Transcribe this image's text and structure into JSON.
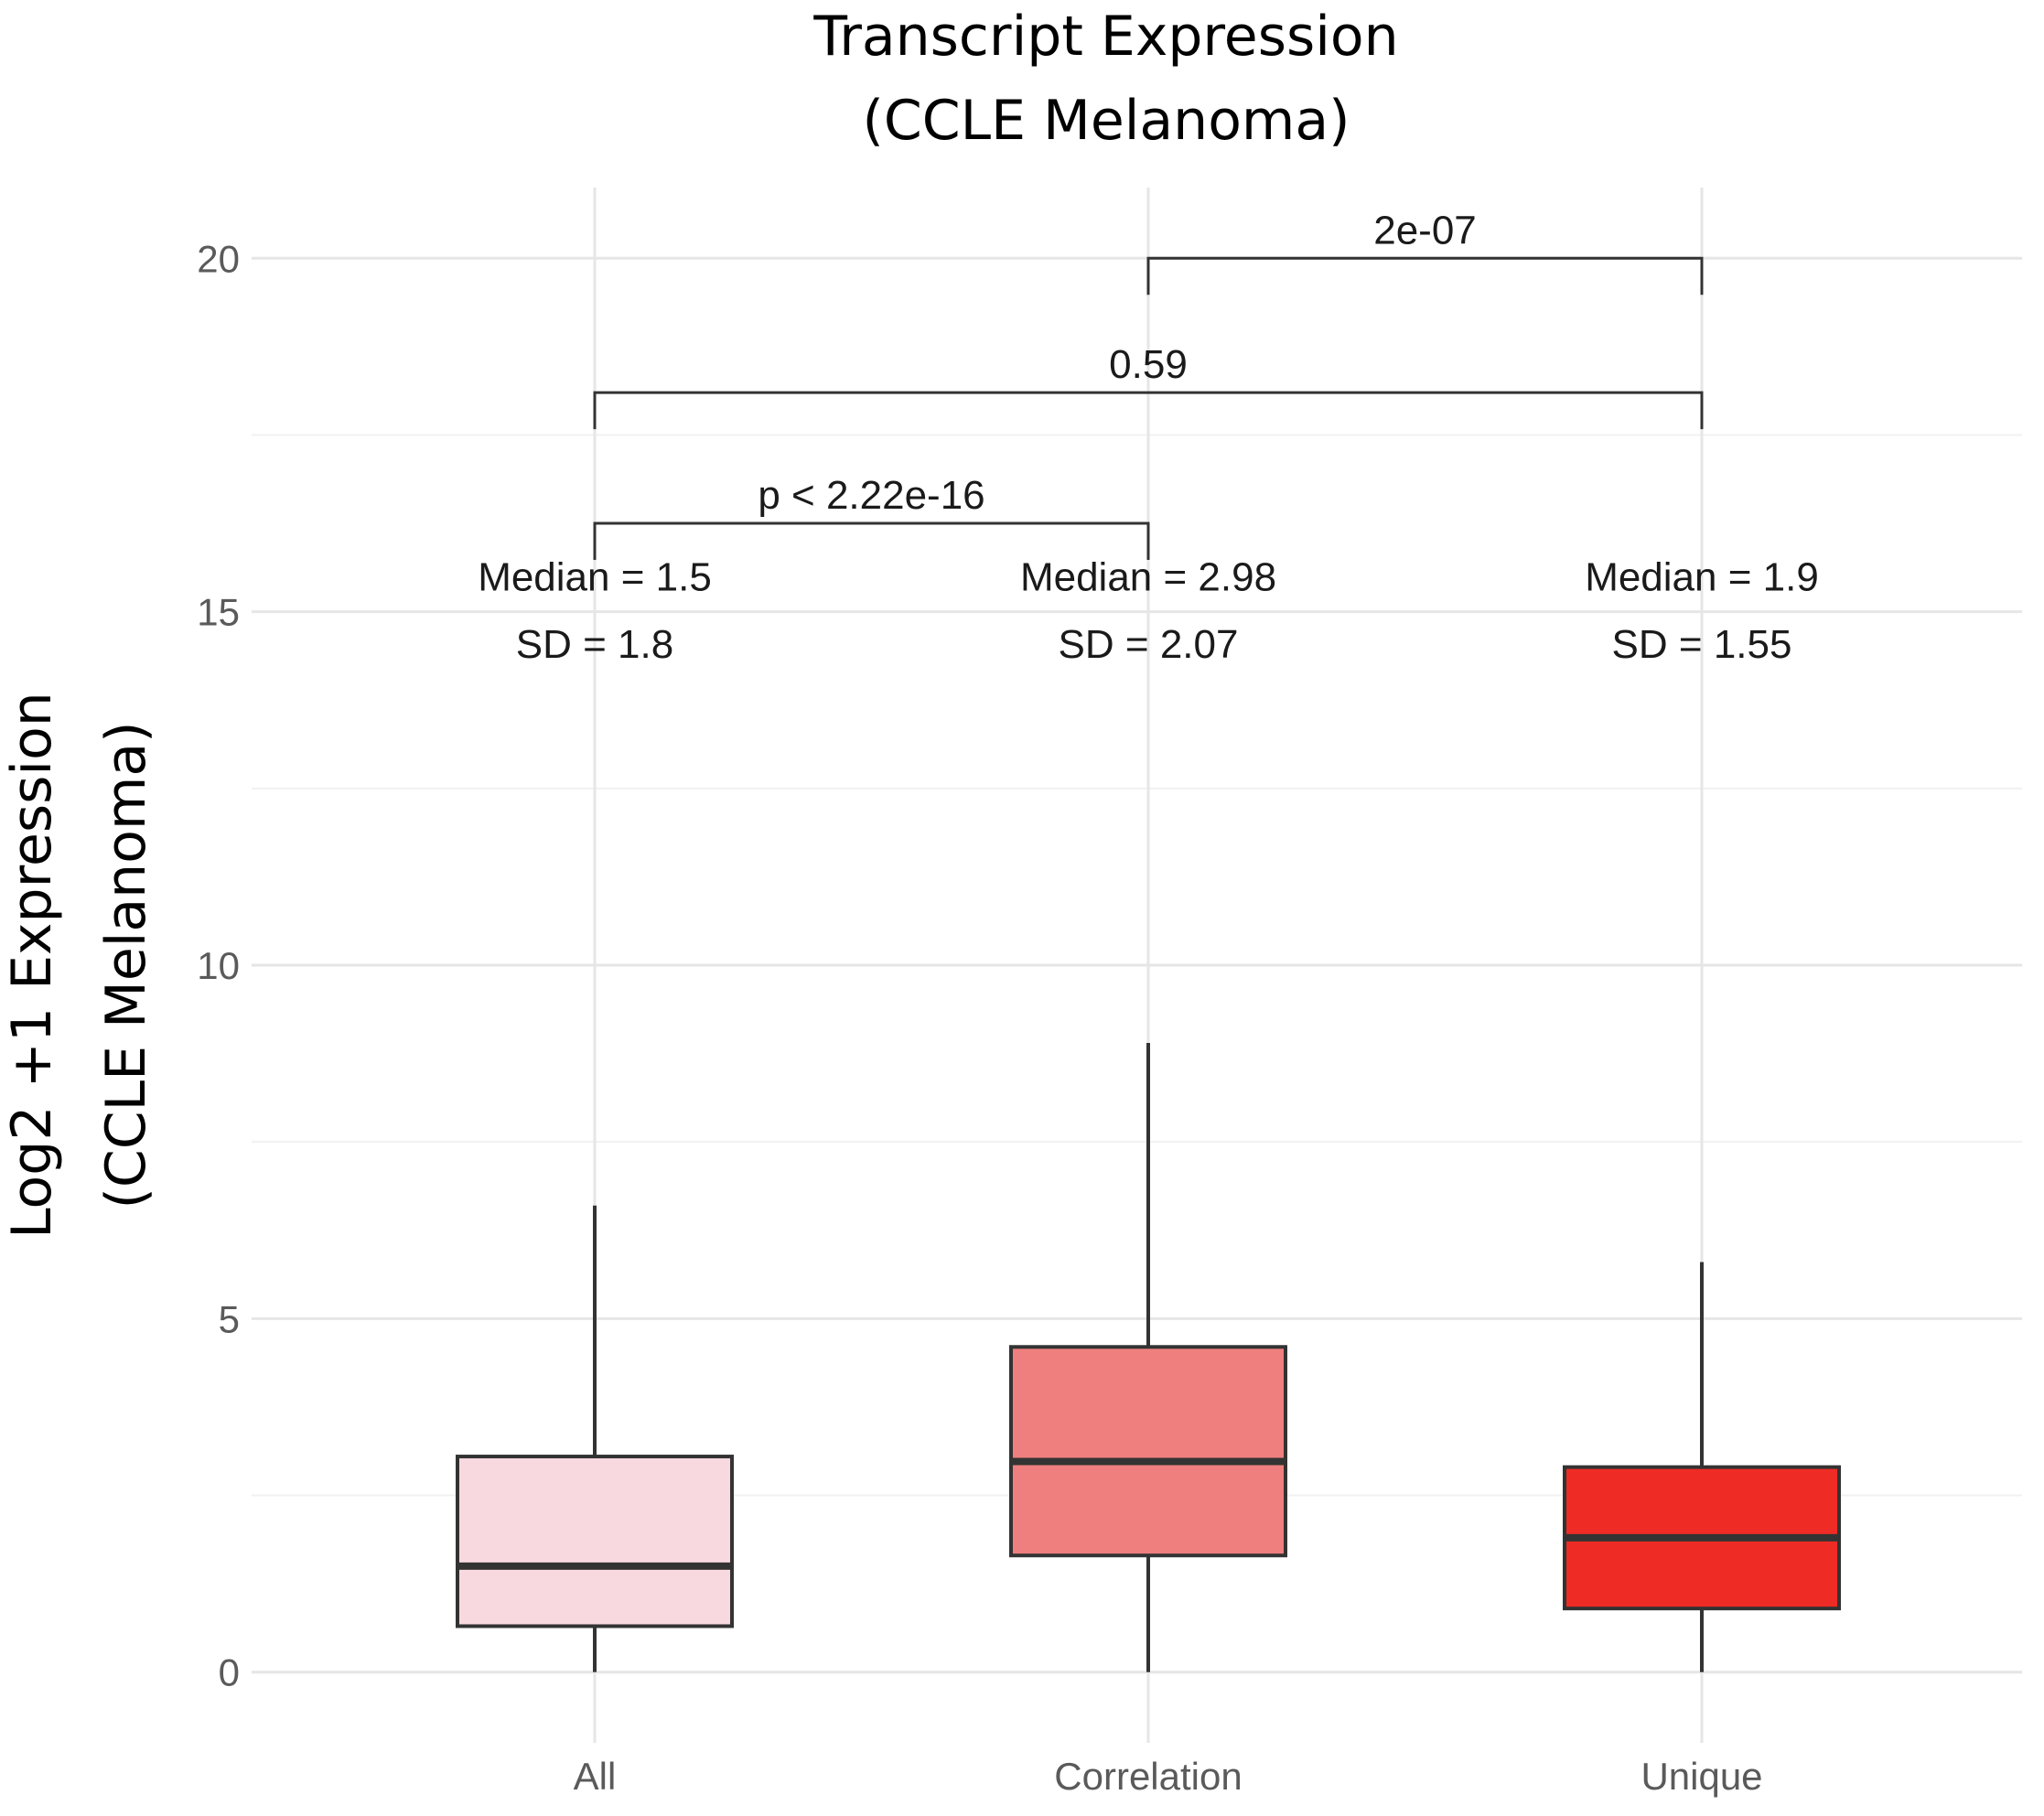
{
  "chart_data": {
    "type": "box",
    "title": [
      "Transcript Expression",
      "(CCLE Melanoma)"
    ],
    "ylabel": [
      "Log2 +1 Expression",
      "(CCLE Melanoma)"
    ],
    "xlabel": "",
    "ylim": [
      -1,
      21
    ],
    "yticks": [
      0,
      5,
      10,
      15,
      20
    ],
    "grid": true,
    "categories": [
      "All",
      "Correlation",
      "Unique"
    ],
    "boxes": [
      {
        "category": "All",
        "min": 0,
        "q1": 0.65,
        "median": 1.5,
        "q3": 3.05,
        "max": 6.6,
        "color": "#f9d9e0",
        "label_median": "Median = 1.5",
        "label_sd": "SD = 1.8"
      },
      {
        "category": "Correlation",
        "min": 0,
        "q1": 1.65,
        "median": 2.98,
        "q3": 4.6,
        "max": 8.9,
        "color": "#ef7f7e",
        "label_median": "Median = 2.98",
        "label_sd": "SD = 2.07"
      },
      {
        "category": "Unique",
        "min": 0,
        "q1": 0.9,
        "median": 1.9,
        "q3": 2.9,
        "max": 5.8,
        "color": "#ee2b25",
        "label_median": "Median = 1.9",
        "label_sd": "SD = 1.55"
      }
    ],
    "annotation_y": {
      "median": 15.3,
      "sd": 14.35
    },
    "comparisons": [
      {
        "from": "All",
        "to": "Correlation",
        "y": 16.25,
        "label": "p < 2.22e-16"
      },
      {
        "from": "All",
        "to": "Unique",
        "y": 18.1,
        "label": "0.59"
      },
      {
        "from": "Correlation",
        "to": "Unique",
        "y": 20.0,
        "label": "2e-07"
      }
    ]
  }
}
